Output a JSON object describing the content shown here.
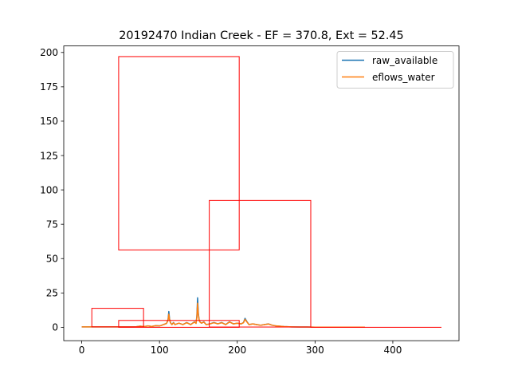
{
  "chart_data": {
    "type": "line",
    "title": "20192470 Indian Creek - EF = 370.8, Ext = 52.45",
    "xlabel": "",
    "ylabel": "",
    "xlim": [
      -23.1,
      485.1
    ],
    "ylim": [
      -9.75,
      204.75
    ],
    "xticks": [
      0,
      100,
      200,
      300,
      400
    ],
    "yticks": [
      0,
      25,
      50,
      75,
      100,
      125,
      150,
      175,
      200
    ],
    "grid": false,
    "legend": {
      "placement": "top-right"
    },
    "series": [
      {
        "name": "raw_available",
        "color": "#1f77b4",
        "x": [
          0,
          10,
          20,
          30,
          40,
          50,
          60,
          70,
          75,
          80,
          85,
          90,
          95,
          100,
          103,
          106,
          109,
          111,
          112,
          113,
          114,
          116,
          118,
          120,
          125,
          130,
          135,
          140,
          145,
          147,
          148,
          149,
          150,
          151,
          152,
          154,
          157,
          160,
          165,
          170,
          175,
          180,
          185,
          190,
          195,
          200,
          205,
          208,
          210,
          212,
          215,
          220,
          225,
          230,
          235,
          240,
          245,
          250,
          260,
          270,
          280,
          290,
          300,
          320,
          340,
          364
        ],
        "y": [
          0.3,
          0.3,
          0.3,
          0.3,
          0.3,
          0.3,
          0.3,
          0.4,
          0.8,
          0.5,
          1.0,
          0.6,
          1.2,
          1.0,
          1.5,
          2.2,
          2.8,
          5.5,
          11.5,
          6.0,
          3.5,
          2.0,
          3.5,
          2.0,
          3.0,
          2.0,
          3.5,
          2.0,
          4.0,
          3.0,
          8.0,
          21.5,
          10.0,
          5.5,
          4.0,
          3.0,
          4.0,
          2.0,
          2.5,
          3.5,
          2.5,
          3.5,
          2.0,
          4.0,
          2.5,
          3.0,
          2.5,
          3.5,
          6.5,
          4.5,
          2.0,
          2.5,
          2.0,
          1.5,
          2.0,
          2.5,
          1.5,
          1.0,
          0.5,
          0.3,
          0.2,
          0.2,
          0.1,
          0.1,
          0.1,
          0.1
        ]
      },
      {
        "name": "eflows_water",
        "color": "#ff7f0e",
        "x": [
          0,
          10,
          20,
          30,
          40,
          50,
          60,
          70,
          75,
          80,
          85,
          90,
          95,
          100,
          103,
          106,
          109,
          111,
          112,
          113,
          114,
          116,
          118,
          120,
          125,
          130,
          135,
          140,
          145,
          147,
          148,
          149,
          150,
          151,
          152,
          154,
          157,
          160,
          165,
          170,
          175,
          180,
          185,
          190,
          195,
          200,
          205,
          208,
          210,
          212,
          215,
          220,
          225,
          230,
          235,
          240,
          245,
          250,
          260,
          270,
          280,
          290,
          300,
          320,
          340,
          364
        ],
        "y": [
          0.3,
          0.3,
          0.3,
          0.3,
          0.3,
          0.3,
          0.3,
          0.4,
          0.8,
          0.5,
          1.0,
          0.6,
          1.2,
          1.0,
          1.5,
          2.2,
          2.8,
          5.0,
          9.5,
          5.5,
          3.3,
          2.0,
          3.3,
          2.0,
          3.0,
          2.0,
          3.3,
          2.0,
          3.8,
          2.8,
          7.0,
          17.5,
          9.0,
          5.0,
          3.8,
          3.0,
          3.8,
          2.0,
          2.5,
          3.3,
          2.5,
          3.3,
          2.0,
          3.8,
          2.5,
          3.0,
          2.5,
          3.3,
          5.8,
          4.2,
          2.0,
          2.5,
          2.0,
          1.5,
          2.0,
          2.4,
          1.5,
          1.0,
          0.5,
          0.3,
          0.2,
          0.2,
          0.1,
          0.1,
          0.1,
          0.1
        ]
      }
    ],
    "overlays": {
      "color": "#ff0000",
      "rectangles": [
        {
          "x0": 47.5,
          "x1": 202.5,
          "y0": 56.3,
          "y1": 197.0
        },
        {
          "x0": 164.0,
          "x1": 294.5,
          "y0": 0.2,
          "y1": 92.3
        },
        {
          "x0": 13.0,
          "x1": 79.5,
          "y0": 0.3,
          "y1": 13.8
        },
        {
          "x0": 47.5,
          "x1": 202.5,
          "y0": 0.0,
          "y1": 5.0
        },
        {
          "x0": 294.5,
          "x1": 462.0,
          "y0": 0.0,
          "y1": 0.0
        }
      ]
    }
  }
}
